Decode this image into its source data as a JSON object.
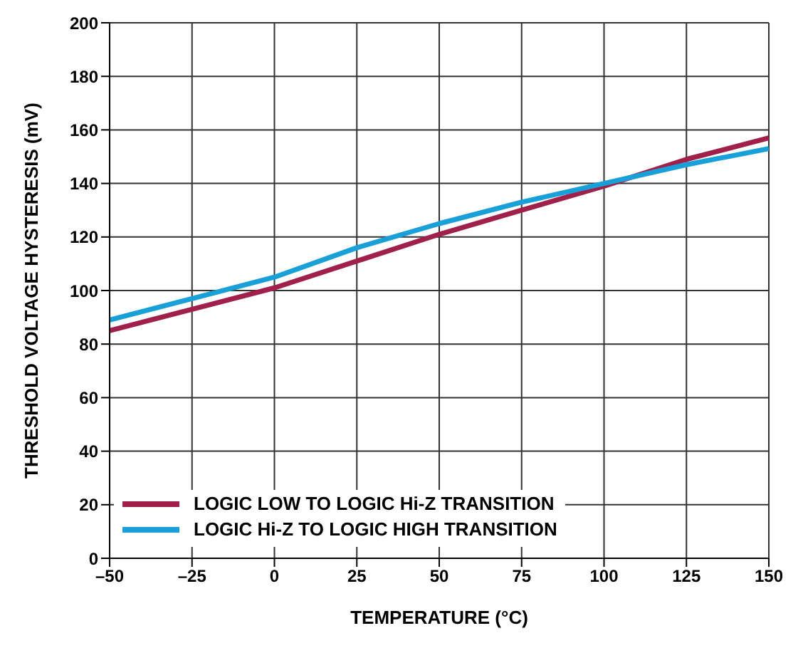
{
  "chart_data": {
    "type": "line",
    "xlabel": "TEMPERATURE (°C)",
    "ylabel": "THRESHOLD VOLTAGE HYSTERESIS (mV)",
    "x": [
      -50,
      -25,
      0,
      25,
      50,
      75,
      100,
      125,
      150
    ],
    "series": [
      {
        "name": "LOGIC LOW TO LOGIC Hi-Z TRANSITION",
        "color": "#a0204a",
        "values": [
          85,
          93,
          101,
          111,
          121,
          130,
          139,
          149,
          157
        ]
      },
      {
        "name": "LOGIC Hi-Z TO LOGIC HIGH TRANSITION",
        "color": "#1aa0d8",
        "values": [
          89,
          97,
          105,
          116,
          125,
          133,
          140,
          147,
          153
        ]
      }
    ],
    "xlim": [
      -50,
      150
    ],
    "xticks": [
      {
        "value": -50,
        "label": "–50"
      },
      {
        "value": -25,
        "label": "–25"
      },
      0,
      25,
      50,
      75,
      100,
      125,
      150
    ],
    "ylim": [
      0,
      200
    ],
    "yticks": [
      0,
      20,
      40,
      60,
      80,
      100,
      120,
      140,
      160,
      180,
      200
    ],
    "grid": true,
    "legend": "bottom left",
    "marker": "none",
    "line_style": "solid"
  }
}
